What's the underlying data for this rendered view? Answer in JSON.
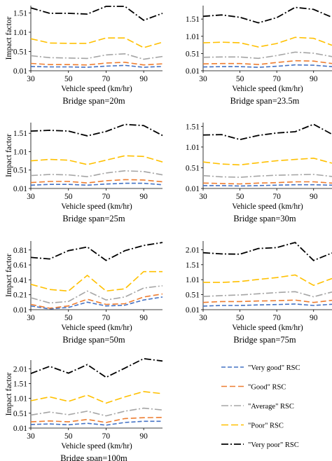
{
  "legend": [
    {
      "key": "very_good",
      "label": "\"Very good\" RSC",
      "color": "#4472c4",
      "dash": "6,3"
    },
    {
      "key": "good",
      "label": "\"Good\" RSC",
      "color": "#ed7d31",
      "dash": "8,4"
    },
    {
      "key": "average",
      "label": "\"Average\" RSC",
      "color": "#a5a5a5",
      "dash": "10,3,2,3"
    },
    {
      "key": "poor",
      "label": "\"Poor\" RSC",
      "color": "#ffc000",
      "dash": "10,4"
    },
    {
      "key": "very_poor",
      "label": "\"Very poor\" RSC",
      "color": "#000000",
      "dash": "10,3,2,3"
    }
  ],
  "chart_data": [
    {
      "type": "line",
      "caption": "Bridge span=20m",
      "xlabel": "Vehicle speed (km/hr)",
      "ylabel": "Impact factor",
      "xticks": [
        "30",
        "50",
        "70",
        "90"
      ],
      "xlim": [
        30,
        100
      ],
      "yticks": [
        "0.01",
        "0.51",
        "1.01",
        "1.51"
      ],
      "ylim": [
        0.01,
        1.7
      ],
      "x": [
        30,
        40,
        50,
        60,
        70,
        80,
        90,
        100
      ],
      "series": [
        {
          "key": "very_good",
          "name": "\"Very good\" RSC",
          "values": [
            0.12,
            0.11,
            0.11,
            0.1,
            0.13,
            0.15,
            0.1,
            0.12
          ]
        },
        {
          "key": "good",
          "name": "\"Good\" RSC",
          "values": [
            0.2,
            0.17,
            0.17,
            0.16,
            0.21,
            0.23,
            0.16,
            0.19
          ]
        },
        {
          "key": "average",
          "name": "\"Average\" RSC",
          "values": [
            0.4,
            0.35,
            0.34,
            0.33,
            0.42,
            0.45,
            0.31,
            0.38
          ]
        },
        {
          "key": "poor",
          "name": "\"Poor\" RSC",
          "values": [
            0.84,
            0.73,
            0.72,
            0.72,
            0.86,
            0.86,
            0.61,
            0.75
          ]
        },
        {
          "key": "very_poor",
          "name": "\"Very poor\" RSC",
          "values": [
            1.64,
            1.5,
            1.5,
            1.48,
            1.68,
            1.68,
            1.32,
            1.5
          ]
        }
      ]
    },
    {
      "type": "line",
      "caption": "Bridge span=23.5m",
      "xlabel": "Vehicle speed (km/hr)",
      "ylabel": "",
      "xticks": [
        "30",
        "50",
        "70",
        "90"
      ],
      "xlim": [
        30,
        100
      ],
      "yticks": [
        "0.01",
        "0.51",
        "1.01",
        "1.51"
      ],
      "ylim": [
        0.01,
        1.9
      ],
      "x": [
        30,
        40,
        50,
        60,
        70,
        80,
        90,
        100
      ],
      "series": [
        {
          "key": "very_good",
          "name": "\"Very good\" RSC",
          "values": [
            0.12,
            0.13,
            0.13,
            0.11,
            0.14,
            0.18,
            0.17,
            0.13
          ]
        },
        {
          "key": "good",
          "name": "\"Good\" RSC",
          "values": [
            0.21,
            0.22,
            0.22,
            0.19,
            0.25,
            0.3,
            0.29,
            0.22
          ]
        },
        {
          "key": "average",
          "name": "\"Average\" RSC",
          "values": [
            0.4,
            0.41,
            0.41,
            0.37,
            0.45,
            0.55,
            0.52,
            0.42
          ]
        },
        {
          "key": "poor",
          "name": "\"Poor\" RSC",
          "values": [
            0.82,
            0.84,
            0.82,
            0.7,
            0.8,
            0.98,
            0.95,
            0.75
          ]
        },
        {
          "key": "very_poor",
          "name": "\"Very poor\" RSC",
          "values": [
            1.59,
            1.63,
            1.56,
            1.4,
            1.55,
            1.85,
            1.79,
            1.56
          ]
        }
      ]
    },
    {
      "type": "line",
      "caption": "Bridge span=25m",
      "xlabel": "Vehicle speed (km/hr)",
      "ylabel": "Impact factor",
      "xticks": [
        "30",
        "50",
        "70",
        "90"
      ],
      "xlim": [
        30,
        100
      ],
      "yticks": [
        "0.01",
        "0.51",
        "1.01",
        "1.51"
      ],
      "ylim": [
        0.01,
        1.8
      ],
      "x": [
        30,
        40,
        50,
        60,
        70,
        80,
        90,
        100
      ],
      "series": [
        {
          "key": "very_good",
          "name": "\"Very good\" RSC",
          "values": [
            0.1,
            0.12,
            0.12,
            0.1,
            0.13,
            0.15,
            0.15,
            0.11
          ]
        },
        {
          "key": "good",
          "name": "\"Good\" RSC",
          "values": [
            0.17,
            0.2,
            0.2,
            0.16,
            0.22,
            0.25,
            0.24,
            0.19
          ]
        },
        {
          "key": "average",
          "name": "\"Average\" RSC",
          "values": [
            0.36,
            0.39,
            0.38,
            0.33,
            0.43,
            0.49,
            0.47,
            0.38
          ]
        },
        {
          "key": "poor",
          "name": "\"Poor\" RSC",
          "values": [
            0.76,
            0.8,
            0.78,
            0.66,
            0.78,
            0.9,
            0.88,
            0.73
          ]
        },
        {
          "key": "very_poor",
          "name": "\"Very poor\" RSC",
          "values": [
            1.57,
            1.59,
            1.57,
            1.44,
            1.56,
            1.75,
            1.72,
            1.45
          ]
        }
      ]
    },
    {
      "type": "line",
      "caption": "Bridge span=30m",
      "xlabel": "Vehicle speed (km/hr)",
      "ylabel": "",
      "xticks": [
        "30",
        "50",
        "70",
        "90"
      ],
      "xlim": [
        30,
        100
      ],
      "yticks": [
        "0.01",
        "0.51",
        "1.01",
        "1.51"
      ],
      "ylim": [
        0.01,
        1.6
      ],
      "x": [
        30,
        40,
        50,
        60,
        70,
        80,
        90,
        100
      ],
      "series": [
        {
          "key": "very_good",
          "name": "\"Very good\" RSC",
          "values": [
            0.08,
            0.08,
            0.07,
            0.08,
            0.09,
            0.1,
            0.1,
            0.09
          ]
        },
        {
          "key": "good",
          "name": "\"Good\" RSC",
          "values": [
            0.14,
            0.13,
            0.12,
            0.14,
            0.15,
            0.17,
            0.17,
            0.14
          ]
        },
        {
          "key": "average",
          "name": "\"Average\" RSC",
          "values": [
            0.32,
            0.29,
            0.28,
            0.31,
            0.33,
            0.34,
            0.35,
            0.3
          ]
        },
        {
          "key": "poor",
          "name": "\"Poor\" RSC",
          "values": [
            0.65,
            0.6,
            0.58,
            0.63,
            0.68,
            0.71,
            0.74,
            0.62
          ]
        },
        {
          "key": "very_poor",
          "name": "\"Very poor\" RSC",
          "values": [
            1.3,
            1.31,
            1.19,
            1.29,
            1.35,
            1.38,
            1.56,
            1.32
          ]
        }
      ]
    },
    {
      "type": "line",
      "caption": "Bridge span=50m",
      "xlabel": "Vehicle speed (km/hr)",
      "ylabel": "Impact factor",
      "xticks": [
        "30",
        "50",
        "70",
        "90"
      ],
      "xlim": [
        30,
        100
      ],
      "yticks": [
        "0.01",
        "0.21",
        "0.41",
        "0.61",
        "0.81"
      ],
      "ylim": [
        0.01,
        0.93
      ],
      "x": [
        30,
        40,
        50,
        60,
        70,
        80,
        90,
        100
      ],
      "series": [
        {
          "key": "very_good",
          "name": "\"Very good\" RSC",
          "values": [
            0.06,
            0.02,
            0.04,
            0.11,
            0.06,
            0.07,
            0.14,
            0.18
          ]
        },
        {
          "key": "good",
          "name": "\"Good\" RSC",
          "values": [
            0.08,
            0.03,
            0.06,
            0.15,
            0.08,
            0.09,
            0.18,
            0.22
          ]
        },
        {
          "key": "average",
          "name": "\"Average\" RSC",
          "values": [
            0.17,
            0.1,
            0.12,
            0.26,
            0.14,
            0.18,
            0.3,
            0.33
          ]
        },
        {
          "key": "poor",
          "name": "\"Poor\" RSC",
          "values": [
            0.35,
            0.28,
            0.26,
            0.47,
            0.26,
            0.29,
            0.52,
            0.52
          ]
        },
        {
          "key": "very_poor",
          "name": "\"Very poor\" RSC",
          "values": [
            0.71,
            0.69,
            0.8,
            0.85,
            0.67,
            0.8,
            0.87,
            0.91
          ]
        }
      ]
    },
    {
      "type": "line",
      "caption": "Bridge span=75m",
      "xlabel": "Vehicle speed (km/hr)",
      "ylabel": "",
      "xticks": [
        "30",
        "50",
        "70",
        "90"
      ],
      "xlim": [
        30,
        100
      ],
      "yticks": [
        "0.01",
        "0.51",
        "1.01",
        "1.51",
        "2.01"
      ],
      "ylim": [
        0.01,
        2.3
      ],
      "x": [
        30,
        40,
        50,
        60,
        70,
        80,
        90,
        100
      ],
      "series": [
        {
          "key": "very_good",
          "name": "\"Very good\" RSC",
          "values": [
            0.13,
            0.15,
            0.15,
            0.17,
            0.18,
            0.2,
            0.15,
            0.19
          ]
        },
        {
          "key": "good",
          "name": "\"Good\" RSC",
          "values": [
            0.25,
            0.28,
            0.28,
            0.3,
            0.31,
            0.33,
            0.25,
            0.32
          ]
        },
        {
          "key": "average",
          "name": "\"Average\" RSC",
          "values": [
            0.45,
            0.48,
            0.5,
            0.54,
            0.58,
            0.61,
            0.44,
            0.6
          ]
        },
        {
          "key": "poor",
          "name": "\"Poor\" RSC",
          "values": [
            0.92,
            0.92,
            0.95,
            1.02,
            1.08,
            1.17,
            0.82,
            1.05
          ]
        },
        {
          "key": "very_poor",
          "name": "\"Very poor\" RSC",
          "values": [
            1.91,
            1.87,
            1.86,
            2.05,
            2.08,
            2.25,
            1.65,
            1.9
          ]
        }
      ]
    },
    {
      "type": "line",
      "caption": "Bridge span=100m",
      "xlabel": "Vehicle speed (km/hr)",
      "ylabel": "Impact factor",
      "xticks": [
        "30",
        "50",
        "70",
        "90"
      ],
      "xlim": [
        30,
        100
      ],
      "yticks": [
        "0.01",
        "0.51",
        "1.01",
        "1.51",
        "2.01"
      ],
      "ylim": [
        0.01,
        2.3
      ],
      "x": [
        30,
        40,
        50,
        60,
        70,
        80,
        90,
        100
      ],
      "series": [
        {
          "key": "very_good",
          "name": "\"Very good\" RSC",
          "values": [
            0.13,
            0.15,
            0.12,
            0.17,
            0.11,
            0.2,
            0.24,
            0.24
          ]
        },
        {
          "key": "good",
          "name": "\"Good\" RSC",
          "values": [
            0.22,
            0.25,
            0.22,
            0.3,
            0.2,
            0.33,
            0.36,
            0.37
          ]
        },
        {
          "key": "average",
          "name": "\"Average\" RSC",
          "values": [
            0.45,
            0.55,
            0.46,
            0.58,
            0.42,
            0.58,
            0.68,
            0.62
          ]
        },
        {
          "key": "poor",
          "name": "\"Poor\" RSC",
          "values": [
            0.93,
            1.06,
            0.91,
            1.12,
            0.85,
            1.06,
            1.24,
            1.17
          ]
        },
        {
          "key": "very_poor",
          "name": "\"Very poor\" RSC",
          "values": [
            1.85,
            2.09,
            1.86,
            2.15,
            1.72,
            2.03,
            2.35,
            2.27
          ]
        }
      ]
    }
  ]
}
